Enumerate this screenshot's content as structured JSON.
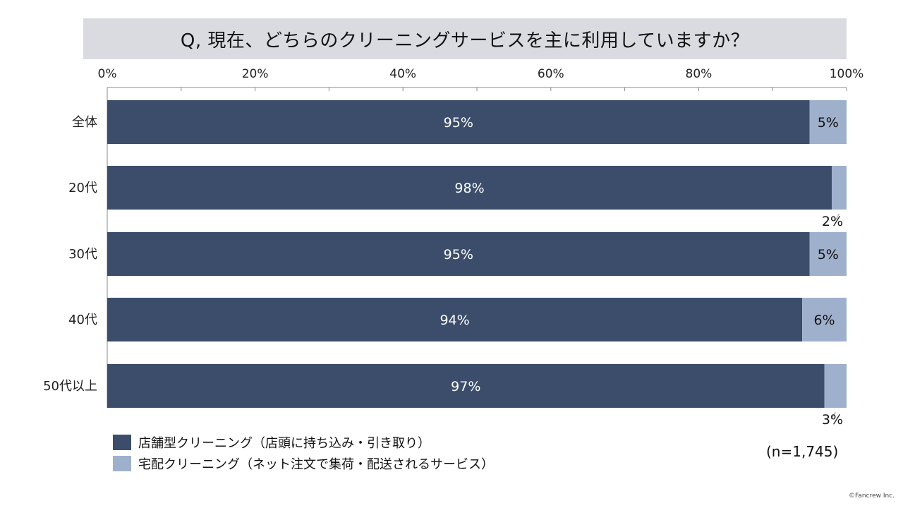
{
  "title": "Q, 現在、どちらのクリーニングサービスを主に利用していますか？",
  "chart_data": {
    "type": "bar",
    "orientation": "horizontal",
    "stacked": true,
    "categories": [
      "全体",
      "20代",
      "30代",
      "40代",
      "50代以上"
    ],
    "series": [
      {
        "name": "店舗型クリーニング（店頭に持ち込み・引き取り）",
        "values": [
          95,
          98,
          95,
          94,
          97
        ],
        "color": "#3b4d6b"
      },
      {
        "name": "宅配クリーニング（ネット注文で集荷・配送されるサービス）",
        "values": [
          5,
          2,
          5,
          6,
          3
        ],
        "color": "#9fb0cc"
      }
    ],
    "value_suffix": "%",
    "x_ticks": [
      "0%",
      "20%",
      "40%",
      "60%",
      "80%",
      "100%"
    ],
    "xlim": [
      0,
      100
    ],
    "x_axis_position": "top",
    "legend_position": "bottom-left",
    "grid": false
  },
  "sample_note": "(n=1,745)",
  "copyright": "©Fancrew Inc."
}
